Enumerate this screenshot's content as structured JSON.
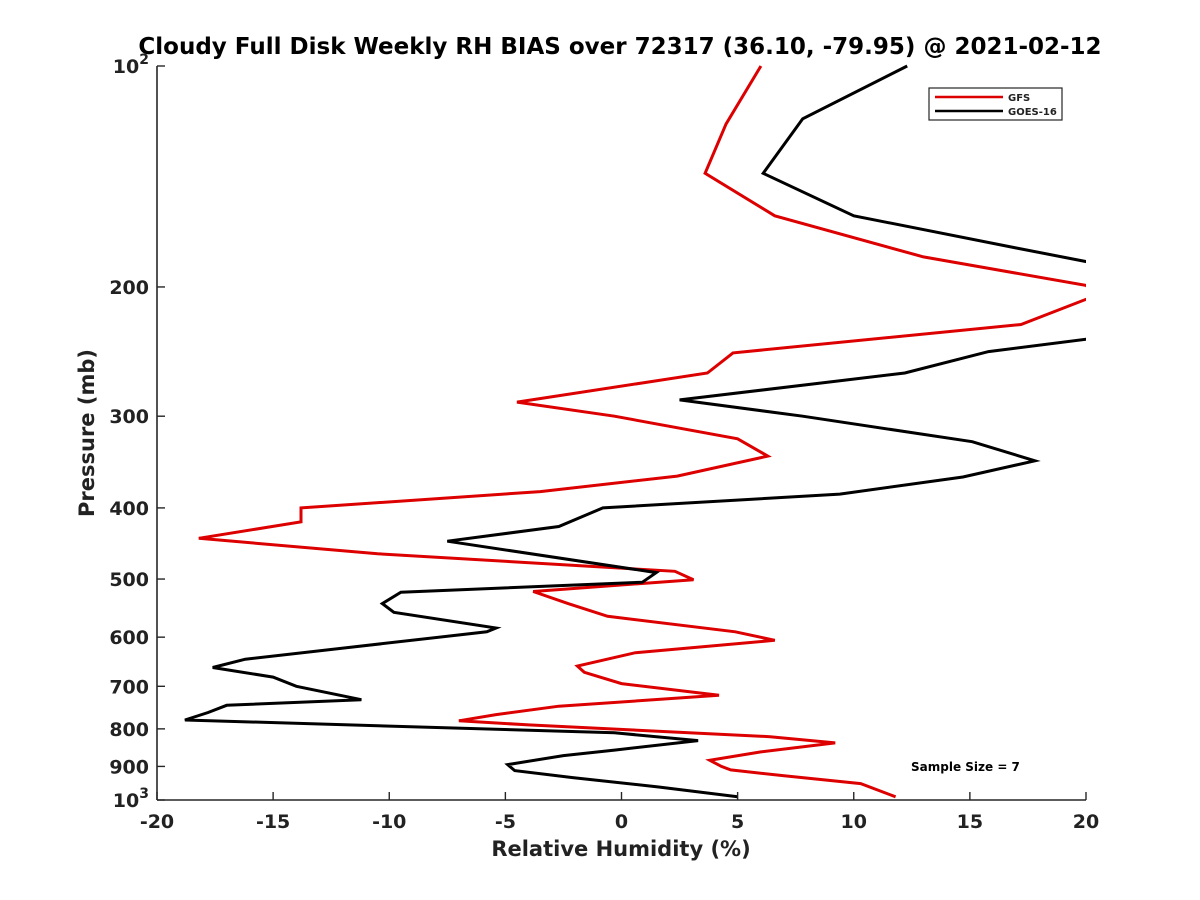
{
  "chart_data": {
    "type": "line",
    "title": "Cloudy Full Disk Weekly RH BIAS over 72317 (36.10, -79.95) @ 2021-02-12",
    "xlabel": "Relative Humidity (%)",
    "ylabel": "Pressure (mb)",
    "xlim": [
      -20,
      20
    ],
    "ylim": [
      100,
      1000
    ],
    "y_scale": "log",
    "y_reversed": true,
    "grid": false,
    "legend_position": "top-right",
    "x_ticks": [
      -20,
      -15,
      -10,
      -5,
      0,
      5,
      10,
      15,
      20
    ],
    "x_tick_labels": [
      "-20",
      "-15",
      "-10",
      "-5",
      "0",
      "5",
      "10",
      "15",
      "20"
    ],
    "y_ticks": [
      100,
      200,
      300,
      400,
      500,
      600,
      700,
      800,
      900,
      1000
    ],
    "y_tick_labels": [
      {
        "base": "10",
        "exp": "2"
      },
      {
        "base": "200",
        "exp": ""
      },
      {
        "base": "300",
        "exp": ""
      },
      {
        "base": "400",
        "exp": ""
      },
      {
        "base": "500",
        "exp": ""
      },
      {
        "base": "600",
        "exp": ""
      },
      {
        "base": "700",
        "exp": ""
      },
      {
        "base": "800",
        "exp": ""
      },
      {
        "base": "900",
        "exp": ""
      },
      {
        "base": "10",
        "exp": "3"
      }
    ],
    "annotation": "Sample Size = 7",
    "series": [
      {
        "name": "GFS",
        "color": "#dd0000",
        "points": [
          [
            6.0,
            100
          ],
          [
            4.5,
            120
          ],
          [
            3.6,
            140
          ],
          [
            6.6,
            160
          ],
          [
            13.0,
            182
          ],
          [
            20.0,
            199
          ],
          [
            20.5,
            205
          ],
          [
            17.2,
            225
          ],
          [
            4.8,
            246
          ],
          [
            3.7,
            262
          ],
          [
            -4.5,
            287
          ],
          [
            -0.3,
            300
          ],
          [
            5.0,
            322
          ],
          [
            6.3,
            340
          ],
          [
            2.4,
            362
          ],
          [
            -3.5,
            380
          ],
          [
            -13.8,
            400
          ],
          [
            -13.8,
            418
          ],
          [
            -18.2,
            440
          ],
          [
            -10.5,
            462
          ],
          [
            2.3,
            488
          ],
          [
            3.1,
            501
          ],
          [
            -3.8,
            520
          ],
          [
            -2.3,
            540
          ],
          [
            -0.6,
            562
          ],
          [
            4.9,
            590
          ],
          [
            6.6,
            606
          ],
          [
            0.6,
            630
          ],
          [
            -1.9,
            657
          ],
          [
            -1.6,
            670
          ],
          [
            0.0,
            694
          ],
          [
            4.2,
            720
          ],
          [
            -2.7,
            745
          ],
          [
            -5.4,
            765
          ],
          [
            -7.0,
            780
          ],
          [
            -4.0,
            790
          ],
          [
            6.4,
            820
          ],
          [
            9.2,
            836
          ],
          [
            6.0,
            860
          ],
          [
            3.8,
            883
          ],
          [
            4.3,
            900
          ],
          [
            4.7,
            910
          ],
          [
            7.0,
            927
          ],
          [
            10.3,
            950
          ],
          [
            11.8,
            990
          ]
        ]
      },
      {
        "name": "GOES-16",
        "color": "#000000",
        "points": [
          [
            12.3,
            100
          ],
          [
            7.8,
            118
          ],
          [
            6.1,
            140
          ],
          [
            10.0,
            160
          ],
          [
            17.0,
            177
          ],
          [
            20.5,
            186
          ],
          [
            20.3,
            235
          ],
          [
            15.8,
            245
          ],
          [
            12.2,
            262
          ],
          [
            2.5,
            285
          ],
          [
            7.8,
            300
          ],
          [
            15.1,
            325
          ],
          [
            17.8,
            345
          ],
          [
            14.7,
            363
          ],
          [
            9.4,
            383
          ],
          [
            -0.8,
            400
          ],
          [
            -2.7,
            424
          ],
          [
            -7.5,
            444
          ],
          [
            1.5,
            490
          ],
          [
            0.9,
            505
          ],
          [
            -9.5,
            521
          ],
          [
            -10.3,
            540
          ],
          [
            -9.8,
            555
          ],
          [
            -5.4,
            583
          ],
          [
            -5.8,
            590
          ],
          [
            -11.8,
            620
          ],
          [
            -16.2,
            643
          ],
          [
            -17.6,
            660
          ],
          [
            -15.0,
            680
          ],
          [
            -14.0,
            700
          ],
          [
            -11.2,
            730
          ],
          [
            -17.0,
            743
          ],
          [
            -17.8,
            760
          ],
          [
            -18.8,
            778
          ],
          [
            -0.3,
            810
          ],
          [
            3.3,
            830
          ],
          [
            -0.3,
            855
          ],
          [
            -2.5,
            870
          ],
          [
            -4.9,
            895
          ],
          [
            -4.6,
            912
          ],
          [
            -2.1,
            932
          ],
          [
            1.6,
            960
          ],
          [
            5.0,
            990
          ]
        ]
      }
    ]
  }
}
